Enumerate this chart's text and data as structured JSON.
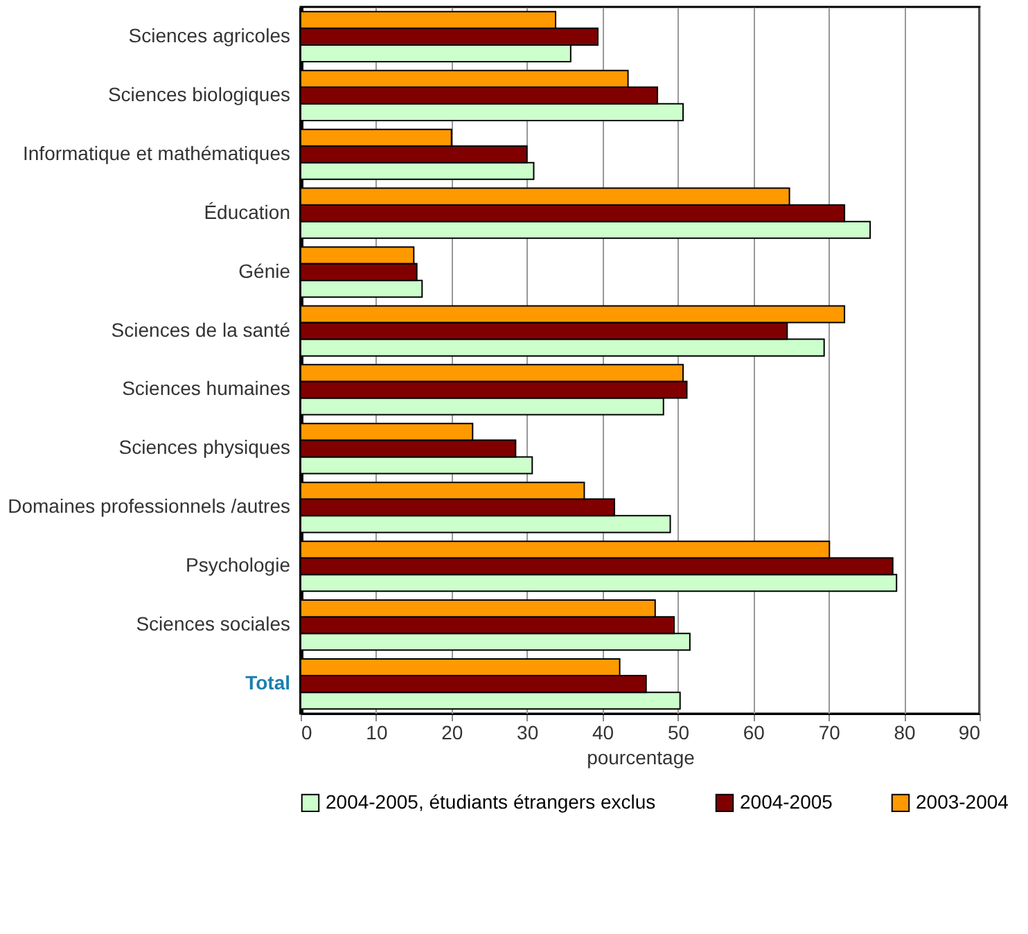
{
  "chart_data": {
    "type": "bar",
    "orientation": "horizontal",
    "xlabel": "pourcentage",
    "categories": [
      "Sciences agricoles",
      "Sciences biologiques",
      "Informatique et mathématiques",
      "Éducation",
      "Génie",
      "Sciences de la santé",
      "Sciences humaines",
      "Sciences physiques",
      "Domaines professionnels /autres",
      "Psychologie",
      "Sciences sociales",
      "Total"
    ],
    "series": [
      {
        "name": "2004-2005, étudiants étrangers exclus",
        "color": "#ccffcc",
        "values": [
          35.8,
          50.7,
          30.9,
          75.5,
          16.1,
          69.4,
          48.1,
          30.7,
          49.0,
          79.0,
          51.6,
          50.3
        ]
      },
      {
        "name": "2004-2005",
        "color": "#800000",
        "values": [
          39.4,
          47.3,
          30.0,
          72.1,
          15.4,
          64.5,
          51.2,
          28.5,
          41.6,
          78.5,
          49.5,
          45.8
        ]
      },
      {
        "name": "2003-2004",
        "color": "#ff9900",
        "values": [
          33.8,
          43.4,
          20.0,
          64.8,
          15.0,
          72.1,
          50.7,
          22.8,
          37.6,
          70.1,
          47.0,
          42.3
        ]
      }
    ],
    "xlim": [
      0,
      90
    ],
    "xticks": [
      0,
      10,
      20,
      30,
      40,
      50,
      60,
      70,
      80,
      90
    ],
    "grid": "x",
    "legend": "bottom"
  }
}
